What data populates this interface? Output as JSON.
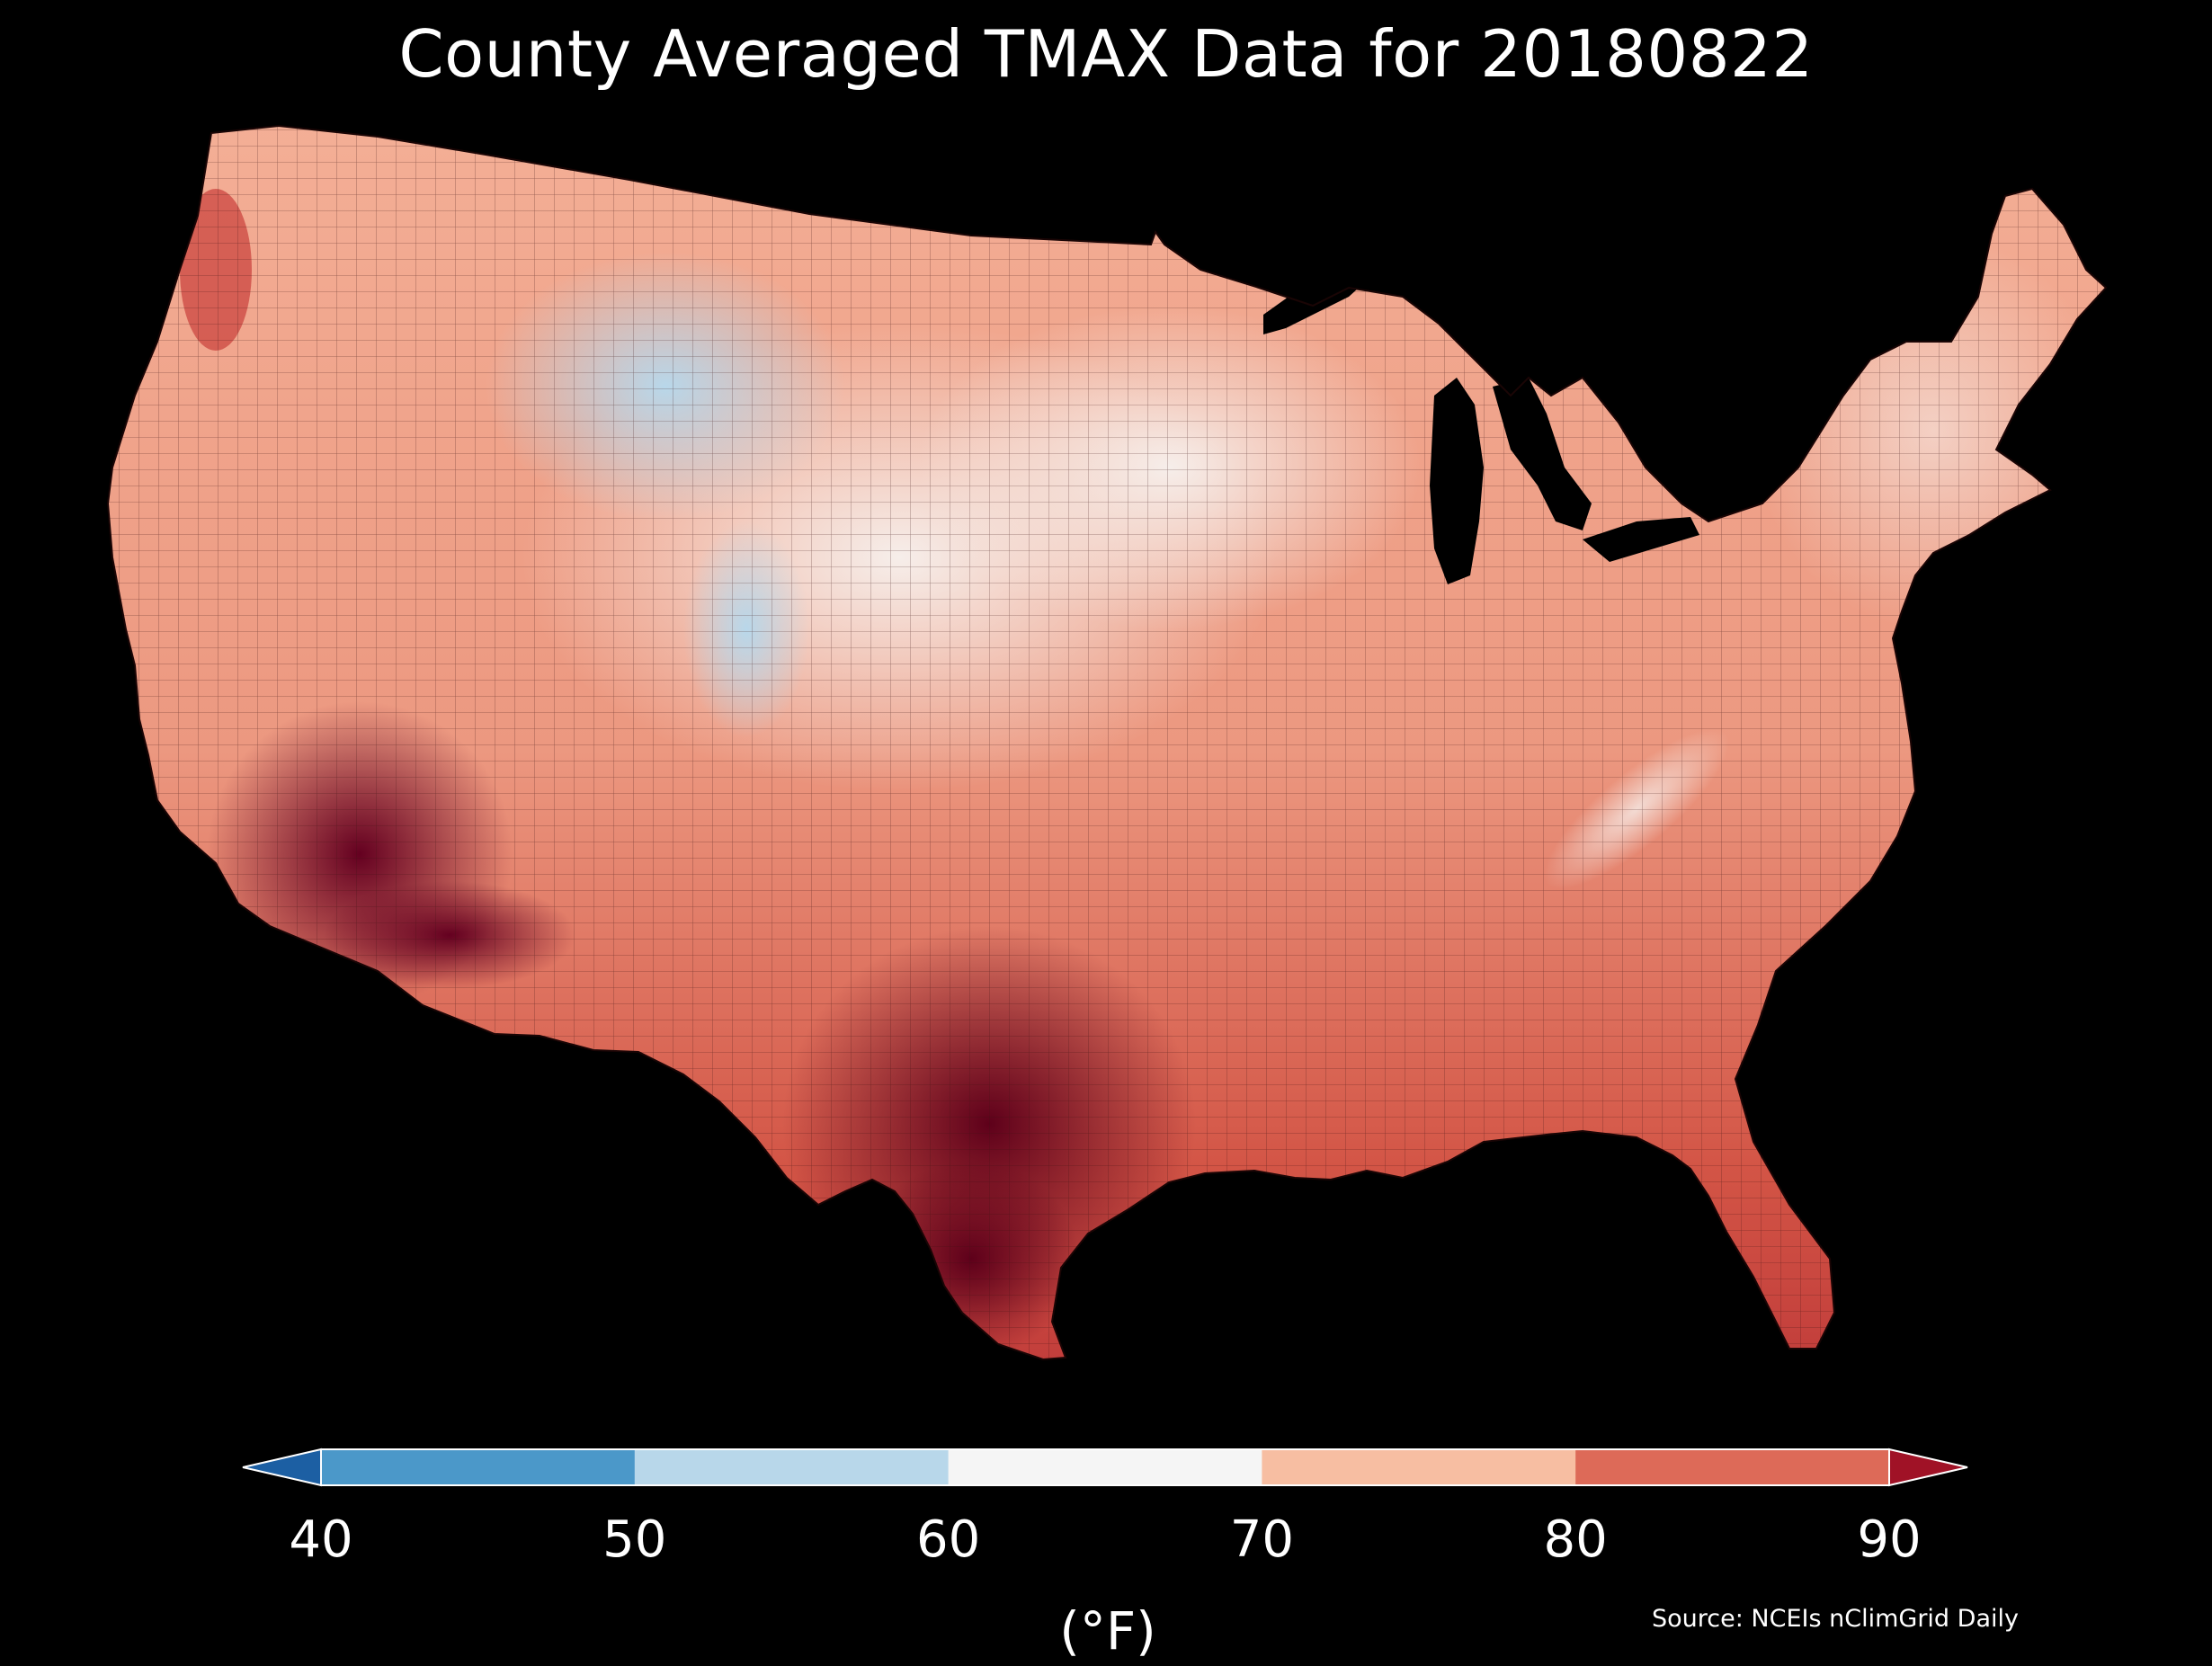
{
  "title": "County Averaged TMAX Data for 20180822",
  "colorbar": {
    "label": "(°F)",
    "ticks": [
      "40",
      "50",
      "60",
      "70",
      "80",
      "90"
    ],
    "bins": [
      {
        "range": "<40",
        "color": "#1c5fa3"
      },
      {
        "range": "40-50",
        "color": "#4b98c9"
      },
      {
        "range": "50-60",
        "color": "#b8d7ea"
      },
      {
        "range": "60-70",
        "color": "#f5f5f5"
      },
      {
        "range": "70-80",
        "color": "#f7bea2"
      },
      {
        "range": "80-90",
        "color": "#dd6a58"
      },
      {
        "range": ">90",
        "color": "#a01226"
      }
    ]
  },
  "source": "Source: NCEIs nClimGrid Daily",
  "palette": {
    "background": "#000000",
    "cool": "#b8d7ea",
    "neutral": "#f5f5f5",
    "warm": "#f7bea2",
    "hot": "#dd6a58",
    "very_hot": "#a01226",
    "extreme": "#6d0020"
  }
}
